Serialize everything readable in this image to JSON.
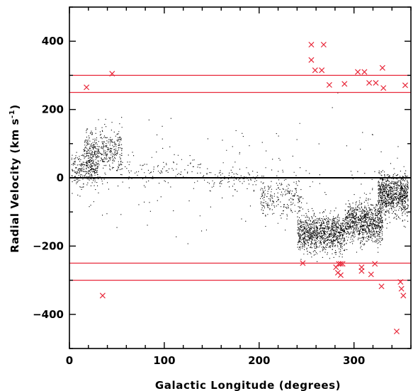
{
  "chart_data": {
    "type": "scatter",
    "xlabel": "Galactic Longitude (degrees)",
    "ylabel": {
      "main": "Radial Velocity (km s",
      "sup": "-1",
      "close": ")"
    },
    "xlim": [
      0,
      360
    ],
    "ylim": [
      -500,
      500
    ],
    "x_ticks": [
      0,
      100,
      200,
      300
    ],
    "y_ticks": [
      -400,
      -200,
      0,
      200,
      400
    ],
    "grid": false,
    "reference_lines": [
      {
        "y": 300,
        "color": "#e8283a"
      },
      {
        "y": 250,
        "color": "#e8283a"
      },
      {
        "y": 0,
        "color": "#000000"
      },
      {
        "y": -250,
        "color": "#e8283a"
      },
      {
        "y": -300,
        "color": "#e8283a"
      }
    ],
    "series": [
      {
        "marker": "dot",
        "color": "#000000",
        "clusters": [
          {
            "x_range": [
              2,
              30
            ],
            "y_center": 30,
            "y_spread": 45,
            "n": 260
          },
          {
            "x_range": [
              15,
              55
            ],
            "y_center": 80,
            "y_spread": 55,
            "n": 420
          },
          {
            "x_range": [
              55,
              140
            ],
            "y_center": 25,
            "y_spread": 35,
            "n": 90
          },
          {
            "x_range": [
              140,
              200
            ],
            "y_center": 0,
            "y_spread": 25,
            "n": 90
          },
          {
            "x_range": [
              200,
              245
            ],
            "y_center": -60,
            "y_spread": 45,
            "n": 220
          },
          {
            "x_range": [
              240,
              290
            ],
            "y_center": -160,
            "y_spread": 45,
            "n": 1050
          },
          {
            "x_range": [
              290,
              330
            ],
            "y_center": -130,
            "y_spread": 50,
            "n": 900
          },
          {
            "x_range": [
              325,
              357
            ],
            "y_center": -50,
            "y_spread": 50,
            "n": 850
          },
          {
            "x_range": [
              0,
              360
            ],
            "y_center": 0,
            "y_spread": 140,
            "n": 160
          }
        ]
      },
      {
        "marker": "x",
        "color": "#e8283a",
        "points": [
          [
            18,
            265
          ],
          [
            45,
            305
          ],
          [
            35,
            -345
          ],
          [
            255,
            390
          ],
          [
            268,
            390
          ],
          [
            255,
            345
          ],
          [
            259,
            315
          ],
          [
            266,
            315
          ],
          [
            274,
            272
          ],
          [
            290,
            275
          ],
          [
            304,
            310
          ],
          [
            311,
            310
          ],
          [
            316,
            278
          ],
          [
            323,
            278
          ],
          [
            330,
            322
          ],
          [
            331,
            263
          ],
          [
            354,
            271
          ],
          [
            246,
            -250
          ],
          [
            281,
            -262
          ],
          [
            284,
            -252
          ],
          [
            286,
            -252
          ],
          [
            288,
            -252
          ],
          [
            283,
            -278
          ],
          [
            286,
            -285
          ],
          [
            308,
            -262
          ],
          [
            308,
            -273
          ],
          [
            318,
            -283
          ],
          [
            322,
            -252
          ],
          [
            329,
            -318
          ],
          [
            349,
            -305
          ],
          [
            350,
            -325
          ],
          [
            352,
            -345
          ],
          [
            345,
            -450
          ]
        ]
      }
    ]
  }
}
